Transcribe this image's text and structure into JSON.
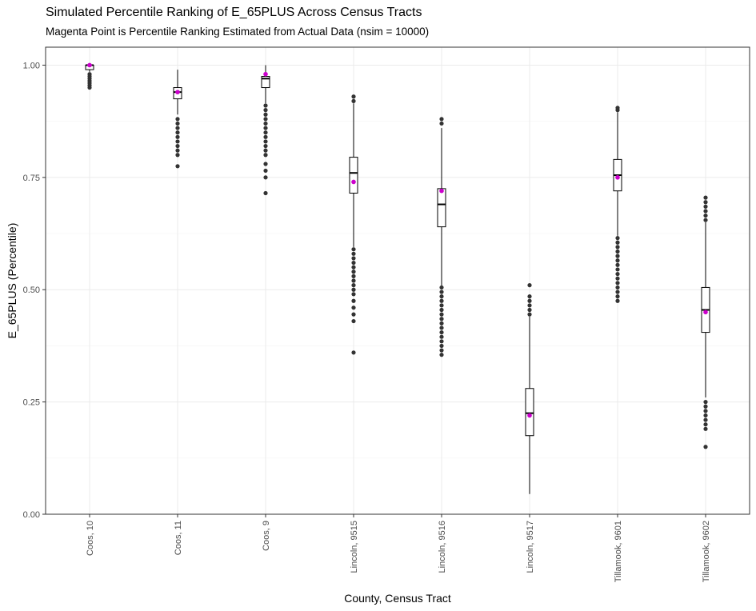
{
  "chart_data": {
    "type": "box",
    "title": "Simulated Percentile Ranking of E_65PLUS Across Census Tracts",
    "subtitle": "Magenta Point is Percentile Ranking Estimated from Actual Data (nsim = 10000)",
    "xlabel": "County, Census Tract",
    "ylabel": "E_65PLUS (Percentile)",
    "ylim": [
      0,
      1.04
    ],
    "yticks": [
      0.0,
      0.25,
      0.5,
      0.75,
      1.0
    ],
    "ytick_labels": [
      "0.00",
      "0.25",
      "0.50",
      "0.75",
      "1.00"
    ],
    "categories": [
      "Coos, 10",
      "Coos, 11",
      "Coos, 9",
      "Lincoln, 9515",
      "Lincoln, 9516",
      "Lincoln, 9517",
      "Tillamook, 9601",
      "Tillamook, 9602"
    ],
    "grid": true,
    "colors": {
      "actual_point": "#cc00cc",
      "box": "#000000",
      "outlier": "#333333",
      "grid": "#ebebeb"
    },
    "boxes": [
      {
        "q1": 0.99,
        "median": 1.0,
        "q3": 1.0,
        "whisker_low": 0.985,
        "whisker_high": 1.0,
        "actual": 1.0,
        "outliers": [
          0.95,
          0.955,
          0.96,
          0.965,
          0.97,
          0.975,
          0.98
        ]
      },
      {
        "q1": 0.925,
        "median": 0.94,
        "q3": 0.95,
        "whisker_low": 0.89,
        "whisker_high": 0.99,
        "actual": 0.94,
        "outliers": [
          0.775,
          0.8,
          0.81,
          0.82,
          0.83,
          0.84,
          0.85,
          0.86,
          0.87,
          0.88
        ]
      },
      {
        "q1": 0.95,
        "median": 0.97,
        "q3": 0.975,
        "whisker_low": 0.915,
        "whisker_high": 1.0,
        "actual": 0.98,
        "outliers": [
          0.715,
          0.75,
          0.765,
          0.78,
          0.8,
          0.81,
          0.82,
          0.83,
          0.84,
          0.85,
          0.86,
          0.87,
          0.88,
          0.89,
          0.9,
          0.91
        ]
      },
      {
        "q1": 0.715,
        "median": 0.76,
        "q3": 0.795,
        "whisker_low": 0.595,
        "whisker_high": 0.915,
        "actual": 0.74,
        "outliers": [
          0.36,
          0.43,
          0.445,
          0.46,
          0.475,
          0.49,
          0.5,
          0.51,
          0.52,
          0.53,
          0.54,
          0.55,
          0.56,
          0.57,
          0.58,
          0.59,
          0.92,
          0.93
        ]
      },
      {
        "q1": 0.64,
        "median": 0.69,
        "q3": 0.725,
        "whisker_low": 0.505,
        "whisker_high": 0.86,
        "actual": 0.72,
        "outliers": [
          0.355,
          0.365,
          0.375,
          0.385,
          0.395,
          0.405,
          0.415,
          0.425,
          0.435,
          0.445,
          0.455,
          0.465,
          0.475,
          0.485,
          0.495,
          0.505,
          0.87,
          0.88
        ]
      },
      {
        "q1": 0.175,
        "median": 0.225,
        "q3": 0.28,
        "whisker_low": 0.045,
        "whisker_high": 0.44,
        "actual": 0.22,
        "outliers": [
          0.445,
          0.455,
          0.465,
          0.475,
          0.485,
          0.51
        ]
      },
      {
        "q1": 0.72,
        "median": 0.755,
        "q3": 0.79,
        "whisker_low": 0.62,
        "whisker_high": 0.895,
        "actual": 0.75,
        "outliers": [
          0.475,
          0.485,
          0.495,
          0.505,
          0.515,
          0.525,
          0.535,
          0.545,
          0.555,
          0.565,
          0.575,
          0.585,
          0.595,
          0.605,
          0.615,
          0.9,
          0.905
        ]
      },
      {
        "q1": 0.405,
        "median": 0.455,
        "q3": 0.505,
        "whisker_low": 0.26,
        "whisker_high": 0.65,
        "actual": 0.45,
        "outliers": [
          0.15,
          0.19,
          0.2,
          0.21,
          0.22,
          0.23,
          0.24,
          0.25,
          0.655,
          0.665,
          0.675,
          0.685,
          0.695,
          0.705
        ]
      }
    ]
  }
}
